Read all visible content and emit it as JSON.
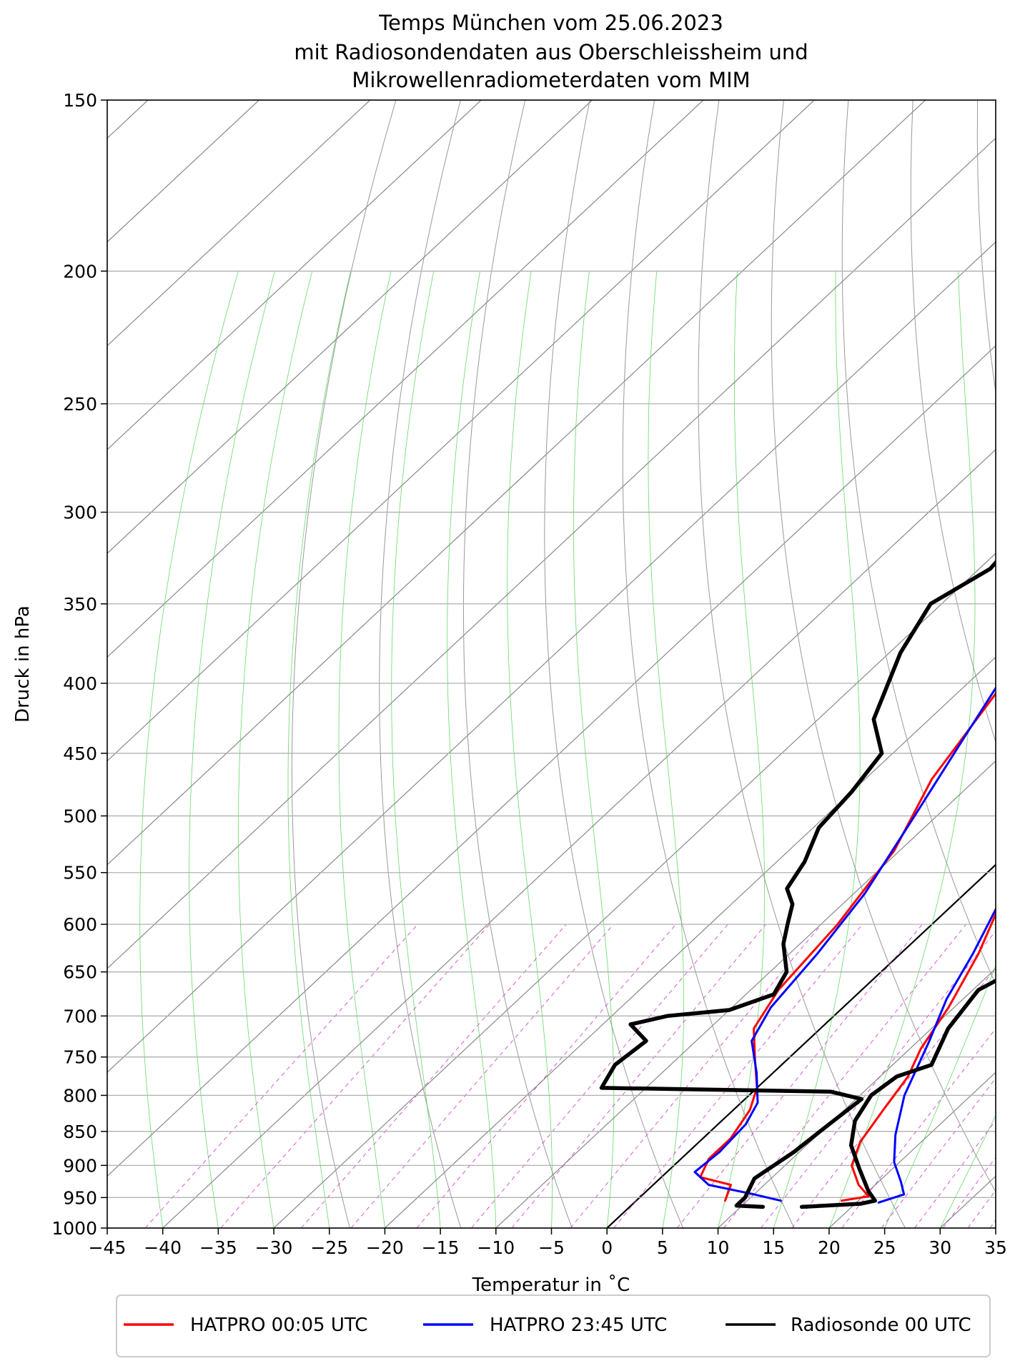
{
  "chart_data": {
    "type": "line",
    "title": [
      "Temps München vom 25.06.2023",
      "mit Radiosondendaten aus Oberschleissheim und",
      "Mikrowellenradiometerdaten vom MIM"
    ],
    "xlabel": "Temperatur in $^\\circ$C",
    "xlabel_display": "Temperatur in ˚C",
    "ylabel": "Druck in hPa",
    "xlim": [
      -45,
      35
    ],
    "ylim": [
      1000,
      150
    ],
    "yscale": "log",
    "x_ticks": [
      -45,
      -40,
      -35,
      -30,
      -25,
      -20,
      -15,
      -10,
      -5,
      0,
      5,
      10,
      15,
      20,
      25,
      30,
      35
    ],
    "x_tick_labels": [
      "−45",
      "−40",
      "−35",
      "−30",
      "−25",
      "−20",
      "−15",
      "−10",
      "−5",
      "0",
      "5",
      "10",
      "15",
      "20",
      "25",
      "30",
      "35"
    ],
    "y_ticks": [
      150,
      200,
      250,
      300,
      350,
      400,
      450,
      500,
      550,
      600,
      650,
      700,
      750,
      800,
      850,
      900,
      950,
      1000
    ],
    "y_tick_labels": [
      "150",
      "200",
      "250",
      "300",
      "350",
      "400",
      "450",
      "500",
      "550",
      "600",
      "650",
      "700",
      "750",
      "800",
      "850",
      "900",
      "950",
      "1000"
    ],
    "grid": true,
    "legend_position": "bottom",
    "series": [
      {
        "name": "HATPRO 00:05 UTC",
        "color": "#ff0000",
        "lines": [
          {
            "kind": "temperature",
            "points": [
              [
                18.5,
                955
              ],
              [
                20.5,
                948
              ],
              [
                18.5,
                930
              ],
              [
                16,
                900
              ],
              [
                14.5,
                865
              ],
              [
                13.5,
                820
              ],
              [
                12.5,
                775
              ],
              [
                11,
                740
              ],
              [
                9.5,
                690
              ],
              [
                7,
                630
              ],
              [
                3,
                560
              ],
              [
                -1,
                500
              ],
              [
                -8,
                410
              ],
              [
                -17,
                300
              ],
              [
                -22,
                250
              ]
            ]
          },
          {
            "kind": "dewpoint",
            "points": [
              [
                8,
                955
              ],
              [
                7,
                930
              ],
              [
                3.5,
                918
              ],
              [
                2.5,
                890
              ],
              [
                2.5,
                860
              ],
              [
                1.5,
                820
              ],
              [
                0,
                790
              ],
              [
                -3,
                752
              ],
              [
                -6,
                715
              ],
              [
                -7.5,
                670
              ],
              [
                -8.5,
                600
              ],
              [
                -10.5,
                530
              ],
              [
                -14,
                470
              ],
              [
                -17,
                395
              ],
              [
                -21,
                325
              ],
              [
                -24,
                265
              ],
              [
                -26,
                250
              ]
            ]
          }
        ]
      },
      {
        "name": "HATPRO 23:45 UTC",
        "color": "#0000ff",
        "lines": [
          {
            "kind": "temperature",
            "points": [
              [
                22,
                958
              ],
              [
                23.5,
                945
              ],
              [
                22,
                925
              ],
              [
                19.5,
                895
              ],
              [
                17,
                855
              ],
              [
                14,
                800
              ],
              [
                11,
                730
              ],
              [
                8.5,
                680
              ],
              [
                6.5,
                630
              ],
              [
                3,
                560
              ],
              [
                -1,
                500
              ],
              [
                -8,
                410
              ],
              [
                -17.5,
                300
              ],
              [
                -23,
                250
              ]
            ]
          },
          {
            "kind": "dewpoint",
            "points": [
              [
                13,
                955
              ],
              [
                10,
                945
              ],
              [
                5,
                930
              ],
              [
                2.5,
                910
              ],
              [
                2.8,
                880
              ],
              [
                2.5,
                840
              ],
              [
                1.5,
                810
              ],
              [
                -1.5,
                770
              ],
              [
                -5,
                730
              ],
              [
                -6.5,
                690
              ],
              [
                -7.5,
                630
              ],
              [
                -9,
                570
              ],
              [
                -12,
                500
              ],
              [
                -15,
                440
              ],
              [
                -17.5,
                395
              ],
              [
                -21.5,
                325
              ],
              [
                -24,
                270
              ],
              [
                -26.5,
                250
              ]
            ]
          }
        ]
      },
      {
        "name": "Radiosonde 00 UTC",
        "color": "#000000",
        "lines": [
          {
            "kind": "temperature",
            "points": [
              [
                15.5,
                965
              ],
              [
                20.5,
                960
              ],
              [
                21.5,
                955
              ],
              [
                20,
                940
              ],
              [
                17,
                905
              ],
              [
                14,
                870
              ],
              [
                12,
                835
              ],
              [
                11,
                800
              ],
              [
                11.5,
                775
              ],
              [
                13.5,
                760
              ],
              [
                11.5,
                715
              ],
              [
                10.5,
                670
              ],
              [
                12.5,
                640
              ],
              [
                11,
                620
              ],
              [
                10,
                560
              ],
              [
                7.5,
                530
              ],
              [
                6.5,
                500
              ],
              [
                4.5,
                450
              ],
              [
                1.5,
                420
              ],
              [
                -2,
                380
              ],
              [
                -5,
                345
              ],
              [
                -7,
                325
              ],
              [
                -9,
                290
              ],
              [
                -13.5,
                250
              ],
              [
                -17,
                225
              ],
              [
                -18.5,
                200
              ],
              [
                -19,
                170
              ],
              [
                -13,
                150
              ]
            ]
          },
          {
            "kind": "dewpoint",
            "points": [
              [
                12,
                965
              ],
              [
                9.5,
                963
              ],
              [
                9.5,
                950
              ],
              [
                8.5,
                920
              ],
              [
                9.5,
                880
              ],
              [
                10,
                840
              ],
              [
                10.5,
                805
              ],
              [
                7,
                795
              ],
              [
                -14,
                790
              ],
              [
                -15,
                760
              ],
              [
                -14.5,
                730
              ],
              [
                -17.5,
                710
              ],
              [
                -15,
                700
              ],
              [
                -10,
                693
              ],
              [
                -7.5,
                675
              ],
              [
                -8.5,
                650
              ],
              [
                -11.5,
                620
              ],
              [
                -13,
                600
              ],
              [
                -14.5,
                580
              ],
              [
                -16.5,
                565
              ],
              [
                -17.5,
                540
              ],
              [
                -19.5,
                510
              ],
              [
                -20,
                480
              ],
              [
                -21,
                450
              ],
              [
                -25,
                425
              ],
              [
                -29,
                380
              ],
              [
                -31,
                350
              ],
              [
                -29,
                330
              ],
              [
                -30,
                300
              ],
              [
                -29.5,
                270
              ],
              [
                -30.5,
                260
              ],
              [
                -28,
                245
              ],
              [
                -25.5,
                225
              ],
              [
                -26.5,
                210
              ],
              [
                -27.5,
                200
              ],
              [
                -27.5,
                190
              ],
              [
                -30.5,
                175
              ],
              [
                -30,
                160
              ]
            ]
          }
        ]
      }
    ]
  }
}
